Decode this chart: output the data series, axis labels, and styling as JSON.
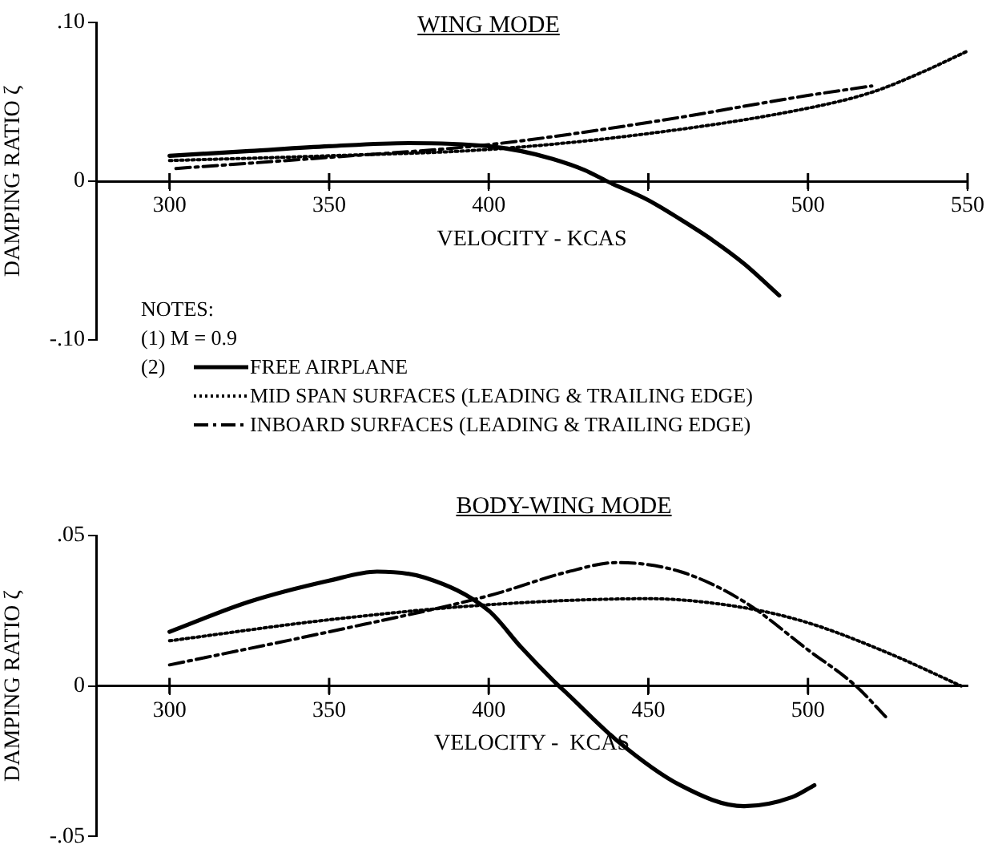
{
  "chart_data": [
    {
      "type": "line",
      "title": "WING MODE",
      "xlabel": "VELOCITY - KCAS",
      "ylabel": "DAMPING RATIO ζ",
      "xlim": [
        277,
        550
      ],
      "xticks": [
        300,
        350,
        400,
        {
          "value": 450,
          "label": null
        },
        500,
        550
      ],
      "ylim": [
        -0.1,
        0.1
      ],
      "yticks": [
        {
          "value": 0.1,
          "label": ".10"
        },
        0,
        {
          "value": -0.1,
          "label": "-.10"
        }
      ],
      "grid": false,
      "legend": "bottom",
      "marker": "none",
      "annotations": [
        "NOTES:",
        "(1)   M = 0.9",
        "(2)"
      ],
      "series": [
        {
          "name": "FREE AIRPLANE",
          "color": "#000000",
          "line_style": "solid",
          "x": [
            300,
            325,
            350,
            375,
            400,
            410,
            420,
            430,
            437,
            450,
            460,
            470,
            480,
            491
          ],
          "values": [
            0.016,
            0.019,
            0.022,
            0.024,
            0.022,
            0.019,
            0.014,
            0.007,
            0,
            -0.012,
            -0.024,
            -0.037,
            -0.052,
            -0.072
          ]
        },
        {
          "name": "MID SPAN SURFACES (LEADING & TRAILING EDGE)",
          "color": "#000000",
          "line_style": "dotted",
          "x": [
            300,
            350,
            400,
            450,
            500,
            520,
            535,
            550
          ],
          "values": [
            0.013,
            0.016,
            0.02,
            0.03,
            0.046,
            0.056,
            0.068,
            0.082
          ]
        },
        {
          "name": "INBOARD SURFACES (LEADING & TRAILING EDGE)",
          "color": "#000000",
          "line_style": "dashed",
          "x": [
            302,
            350,
            400,
            450,
            500,
            520
          ],
          "values": [
            0.008,
            0.015,
            0.023,
            0.037,
            0.054,
            0.06
          ]
        }
      ]
    },
    {
      "type": "line",
      "title": "BODY-WING MODE",
      "xlabel": "VELOCITY -  KCAS",
      "ylabel": "DAMPING RATIO ζ",
      "xlim": [
        277,
        550
      ],
      "xticks": [
        300,
        350,
        400,
        450,
        500
      ],
      "ylim": [
        -0.05,
        0.05
      ],
      "yticks": [
        {
          "value": 0.05,
          "label": ".05"
        },
        0,
        {
          "value": -0.05,
          "label": "-.05"
        }
      ],
      "grid": false,
      "legend": false,
      "marker": "none",
      "series": [
        {
          "color": "#000000",
          "line_style": "solid",
          "x": [
            300,
            325,
            350,
            365,
            380,
            400,
            410,
            420,
            425,
            440,
            460,
            480,
            495,
            502
          ],
          "values": [
            0.018,
            0.028,
            0.035,
            0.038,
            0.036,
            0.025,
            0.013,
            0.002,
            -0.003,
            -0.018,
            -0.033,
            -0.04,
            -0.037,
            -0.033
          ]
        },
        {
          "color": "#000000",
          "line_style": "dotted",
          "x": [
            300,
            350,
            400,
            450,
            480,
            500,
            525,
            548
          ],
          "values": [
            0.015,
            0.022,
            0.027,
            0.029,
            0.026,
            0.021,
            0.011,
            0
          ]
        },
        {
          "color": "#000000",
          "line_style": "dashed",
          "x": [
            300,
            350,
            400,
            425,
            440,
            460,
            480,
            500,
            515,
            525
          ],
          "values": [
            0.007,
            0.018,
            0.03,
            0.038,
            0.041,
            0.038,
            0.028,
            0.012,
            0,
            -0.011
          ]
        }
      ]
    }
  ]
}
